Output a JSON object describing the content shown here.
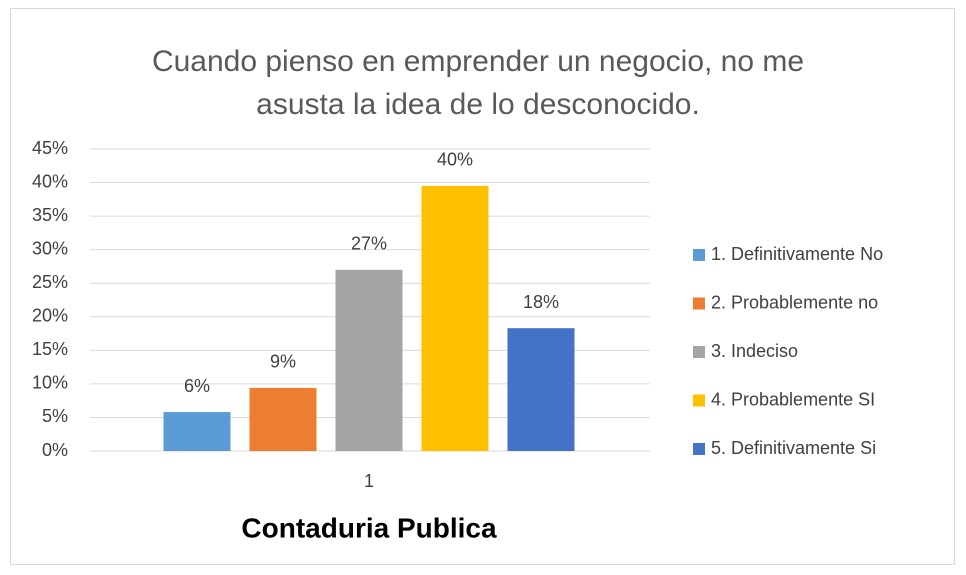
{
  "chart_data": {
    "type": "bar",
    "title": "Cuando pienso en emprender un negocio, no me asusta la idea de lo desconocido.",
    "x_label": "Contaduria Publica",
    "categories": [
      "1"
    ],
    "series": [
      {
        "name": "1. Definitivamente No",
        "color": "#5b9bd5",
        "values": [
          5.8
        ],
        "value_labels": [
          "6%"
        ]
      },
      {
        "name": "2. Probablemente no",
        "color": "#ed7d31",
        "values": [
          9.4
        ],
        "value_labels": [
          "9%"
        ]
      },
      {
        "name": "3. Indeciso",
        "color": "#a5a5a5",
        "values": [
          27.0
        ],
        "value_labels": [
          "27%"
        ]
      },
      {
        "name": "4. Probablemente SI",
        "color": "#ffc000",
        "values": [
          39.5
        ],
        "value_labels": [
          "40%"
        ]
      },
      {
        "name": "5. Definitivamente Si",
        "color": "#4472c4",
        "values": [
          18.3
        ],
        "value_labels": [
          "18%"
        ]
      }
    ],
    "ylim": [
      0,
      45
    ],
    "yticks": [
      {
        "value": 0,
        "label": "0%"
      },
      {
        "value": 5,
        "label": "5%"
      },
      {
        "value": 10,
        "label": "10%"
      },
      {
        "value": 15,
        "label": "15%"
      },
      {
        "value": 20,
        "label": "20%"
      },
      {
        "value": 25,
        "label": "25%"
      },
      {
        "value": 30,
        "label": "30%"
      },
      {
        "value": 35,
        "label": "35%"
      },
      {
        "value": 40,
        "label": "40%"
      },
      {
        "value": 45,
        "label": "45%"
      }
    ],
    "grid": true,
    "legend": "right"
  }
}
